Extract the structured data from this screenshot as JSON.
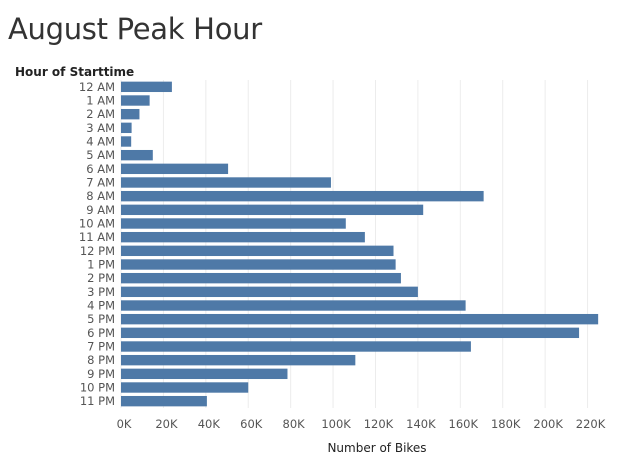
{
  "chart_data": {
    "type": "bar",
    "orientation": "horizontal",
    "title": "August Peak Hour",
    "ylabel": "Hour of Starttime",
    "xlabel": "Number of Bikes",
    "categories": [
      "12 AM",
      "1 AM",
      "2 AM",
      "3 AM",
      "4 AM",
      "5 AM",
      "6 AM",
      "7 AM",
      "8 AM",
      "9 AM",
      "10 AM",
      "11 AM",
      "12 PM",
      "1 PM",
      "2 PM",
      "3 PM",
      "4 PM",
      "5 PM",
      "6 PM",
      "7 PM",
      "8 PM",
      "9 PM",
      "10 PM",
      "11 PM"
    ],
    "values": [
      24000,
      13500,
      8700,
      5000,
      4800,
      15000,
      50500,
      99000,
      171000,
      142500,
      106000,
      115000,
      128500,
      129500,
      132000,
      140000,
      162500,
      225000,
      216000,
      165000,
      110500,
      78500,
      60000,
      40500
    ],
    "xticks": [
      0,
      20000,
      40000,
      60000,
      80000,
      100000,
      120000,
      140000,
      160000,
      180000,
      200000,
      220000
    ],
    "xtick_labels": [
      "0K",
      "20K",
      "40K",
      "60K",
      "80K",
      "100K",
      "120K",
      "140K",
      "160K",
      "180K",
      "200K",
      "220K"
    ],
    "xlim": [
      0,
      232000
    ],
    "grid": true,
    "color": "#4e79a7"
  }
}
